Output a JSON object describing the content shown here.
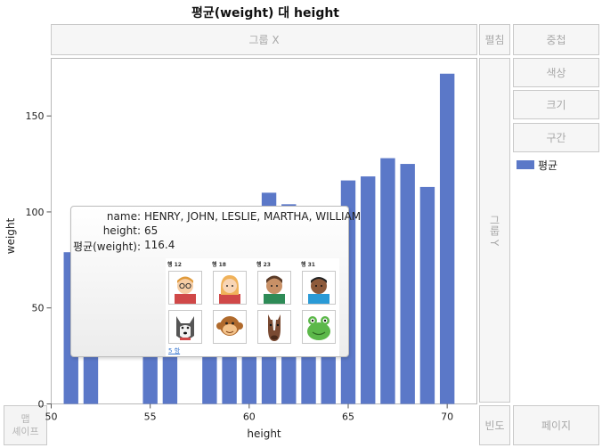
{
  "title": "평균(weight) 대 height",
  "zones": {
    "group_x": "그룹 X",
    "wrap": "펼침",
    "overlay": "중첩",
    "color": "색상",
    "size": "크기",
    "interval": "구간",
    "group_y": "그룹 Y",
    "map_shape": "맵\n셰이프",
    "freq": "빈도",
    "page": "페이지"
  },
  "legend": {
    "label": "평균",
    "color": "#5b78c8"
  },
  "tooltip": {
    "name_label": "name:",
    "name_value": "HENRY, JOHN, LESLIE, MARTHA, WILLIAM",
    "height_label": "height:",
    "height_value": "65",
    "weight_label": "평균(weight):",
    "weight_value": "116.4",
    "thumb_captions": [
      "행 12",
      "행 18",
      "행 23",
      "행 31"
    ],
    "thumb_icons": [
      "boy-glasses-icon",
      "girl-ponytail-icon",
      "boy-tan-icon",
      "boy-dark-icon",
      "husky-dog-icon",
      "monkey-icon",
      "horse-icon",
      "frog-icon"
    ],
    "more_link": "5 항"
  },
  "chart_data": {
    "type": "bar",
    "xlabel": "height",
    "ylabel": "weight",
    "xlim": [
      50,
      71.5
    ],
    "ylim": [
      0,
      180
    ],
    "x_ticks": [
      50,
      55,
      60,
      65,
      70
    ],
    "y_ticks": [
      0,
      50,
      100,
      150
    ],
    "color": "#5b78c8",
    "series": [
      {
        "name": "평균",
        "x": [
          51,
          52,
          55,
          56,
          58,
          59,
          60,
          61,
          62,
          63,
          64,
          65,
          66,
          67,
          68,
          69,
          70
        ],
        "values": [
          79,
          64,
          72,
          76,
          95,
          88,
          102,
          110,
          104,
          100,
          92,
          116.4,
          118.5,
          128,
          125,
          113,
          172
        ]
      }
    ]
  }
}
